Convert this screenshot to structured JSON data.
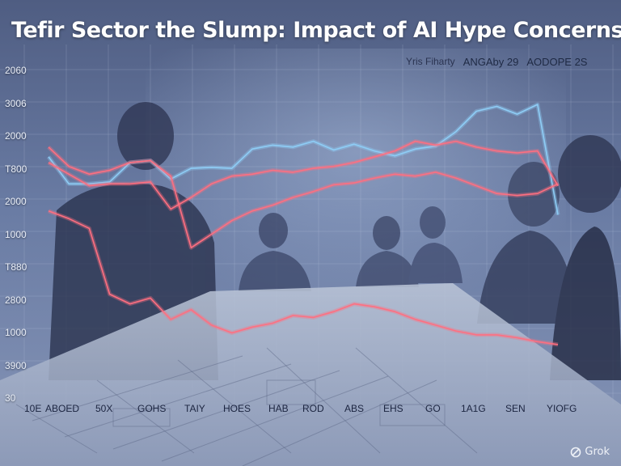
{
  "title": "Tefir Sector the Slump: Impact of AI Hype Concerns",
  "legend": [
    "Yris Fiharty",
    "ANGAby 29",
    "AODOPE 2S"
  ],
  "watermark": "Grok",
  "colors": {
    "series_blue": "#8ecdf6",
    "series_red": "#ff6f80",
    "background": "#5a6a8c"
  },
  "chart_data": {
    "type": "line",
    "title": "Tefir Sector the Slump: Impact of AI Hype Concerns",
    "y_tick_labels": [
      "2060",
      "3006",
      "2000",
      "T800",
      "2000",
      "1000",
      "T880",
      "2800",
      "1000",
      "3900",
      "30"
    ],
    "x_tick_labels": [
      "10E",
      "ABOED",
      "50X",
      "GOHS",
      "TAIY",
      "HOES",
      "HAB",
      "ROD",
      "ABS",
      "EHS",
      "GO",
      "1A1G",
      "SEN",
      "YIOFG"
    ],
    "grid": true,
    "series": [
      {
        "name": "Yris Fiharty",
        "color": "#8ecdf6",
        "values": [
          2150,
          2010,
          2010,
          2020,
          2120,
          2130,
          2035,
          2090,
          2095,
          2090,
          2190,
          2210,
          2200,
          2230,
          2185,
          2215,
          2180,
          2155,
          2190,
          2205,
          2280,
          2385,
          2410,
          2370,
          2420,
          1850
        ]
      },
      {
        "name": "ANGAby 29",
        "color": "#ff6f80",
        "values": [
          2200,
          2100,
          2060,
          2080,
          2120,
          2130,
          2050,
          1680,
          1750,
          1820,
          1870,
          1900,
          1940,
          1970,
          2005,
          2015,
          2040,
          2060,
          2050,
          2070,
          2040,
          2000,
          1960,
          1950,
          1960,
          2010
        ]
      },
      {
        "name": "AODOPE 2S",
        "color": "#ff6f80",
        "values": [
          1870,
          1830,
          1780,
          1440,
          1390,
          1420,
          1310,
          1360,
          1280,
          1240,
          1270,
          1290,
          1330,
          1320,
          1350,
          1390,
          1375,
          1350,
          1310,
          1280,
          1250,
          1230,
          1230,
          1215,
          1195,
          1180
        ]
      },
      {
        "name": "",
        "color": "#ff6f80",
        "values": [
          2120,
          2060,
          2000,
          2010,
          2010,
          2020,
          1880,
          1940,
          2010,
          2050,
          2060,
          2080,
          2070,
          2090,
          2100,
          2120,
          2150,
          2180,
          2230,
          2210,
          2230,
          2200,
          2180,
          2170,
          2180,
          2000
        ]
      }
    ]
  }
}
